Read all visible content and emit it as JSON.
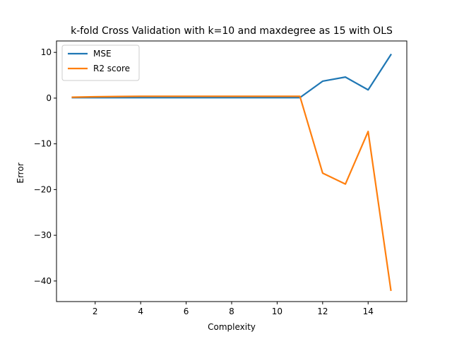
{
  "chart_data": {
    "type": "line",
    "title": "k-fold Cross Validation with k=10 and maxdegree as 15 with OLS",
    "xlabel": "Complexity",
    "ylabel": "Error",
    "xlim": [
      0.3,
      15.7
    ],
    "ylim": [
      -44.5,
      12.5
    ],
    "xticks": [
      2,
      4,
      6,
      8,
      10,
      12,
      14
    ],
    "yticks": [
      10,
      0,
      -10,
      -20,
      -30,
      -40
    ],
    "ytick_labels": [
      "10",
      "0",
      "−10",
      "−20",
      "−30",
      "−40"
    ],
    "x": [
      1,
      2,
      3,
      4,
      5,
      6,
      7,
      8,
      9,
      10,
      11,
      12,
      13,
      14,
      15
    ],
    "series": [
      {
        "name": "MSE",
        "color": "#1f77b4",
        "values": [
          0.1,
          0.1,
          0.1,
          0.1,
          0.1,
          0.1,
          0.1,
          0.1,
          0.1,
          0.1,
          0.1,
          3.7,
          4.6,
          1.8,
          9.5
        ]
      },
      {
        "name": "R2 score",
        "color": "#ff7f0e",
        "values": [
          0.2,
          0.3,
          0.35,
          0.4,
          0.4,
          0.4,
          0.4,
          0.4,
          0.4,
          0.4,
          0.4,
          -16.4,
          -18.8,
          -7.3,
          -42.0
        ]
      }
    ],
    "grid": false,
    "legend_position": "top-left"
  }
}
